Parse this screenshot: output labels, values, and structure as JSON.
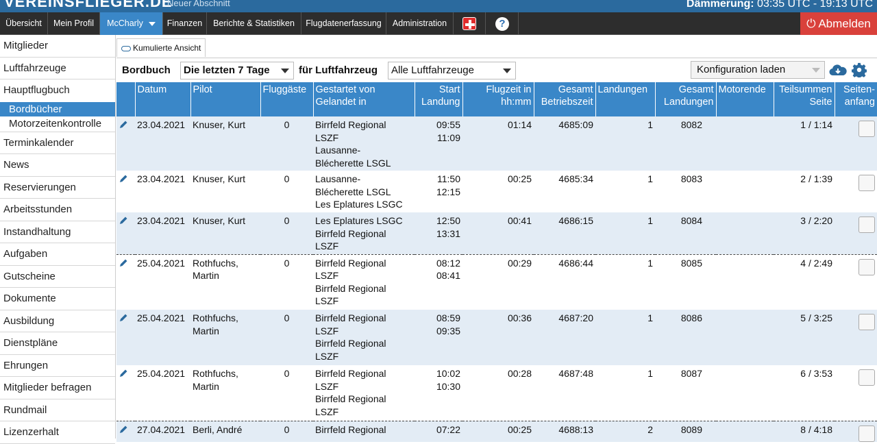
{
  "topbar": {
    "brand": "VEREINSFLIEGER.DE",
    "sub": "Neuer Abschnitt",
    "dusk_label": "Dämmerung:",
    "dusk_value": "03:35 UTC - 19:13 UTC"
  },
  "nav": {
    "items": [
      "Übersicht",
      "Mein Profil",
      "McCharly",
      "Finanzen",
      "Berichte & Statistiken",
      "Flugdatenerfassung",
      "Administration"
    ],
    "logout": "⏻ Abmelden"
  },
  "sidebar": {
    "items": [
      "Mitglieder",
      "Luftfahrzeuge",
      "Hauptflugbuch",
      "Bordbücher",
      "Motorzeitenkontrolle",
      "Terminkalender",
      "News",
      "Reservierungen",
      "Arbeitsstunden",
      "Instandhaltung",
      "Aufgaben",
      "Gutscheine",
      "Dokumente",
      "Ausbildung",
      "Dienstpläne",
      "Ehrungen",
      "Mitglieder befragen",
      "Rundmail",
      "Lizenzerhalt"
    ]
  },
  "tab": {
    "kumuliert": "Kumulierte Ansicht"
  },
  "filter": {
    "bordbuch_label": "Bordbuch",
    "period": "Die letzten 7 Tage",
    "aircraft_label": "für Luftfahrzeug",
    "aircraft": "Alle Luftfahrzeuge",
    "config": "Konfiguration laden"
  },
  "columns": {
    "datum": "Datum",
    "pilot": "Pilot",
    "gaeste": "Fluggäste",
    "von1": "Gestartet von",
    "von2": "Gelandet in",
    "start1": "Start",
    "start2": "Landung",
    "flugzeit1": "Flugzeit in",
    "flugzeit2": "hh:mm",
    "betrieb1": "Gesamt",
    "betrieb2": "Betriebszeit",
    "landungen": "Landungen",
    "gesland1": "Gesamt",
    "gesland2": "Landungen",
    "motorende": "Motorende",
    "teilsummen1": "Teilsummen",
    "teilsummen2": "Seite",
    "seiten1": "Seiten-",
    "seiten2": "anfang"
  },
  "rows": [
    {
      "datum": "23.04.2021",
      "pilot1": "Knuser, Kurt",
      "pilot2": "",
      "gaeste": "0",
      "von": [
        "Birrfeld Regional",
        "LSZF",
        "Lausanne-",
        "Blécherette LSGL"
      ],
      "start": "09:55",
      "landung": "11:09",
      "flugzeit": "01:14",
      "betrieb": "4685:09",
      "landungen": "1",
      "gesland": "8082",
      "teilsumme": "1 / 1:14"
    },
    {
      "datum": "23.04.2021",
      "pilot1": "Knuser, Kurt",
      "pilot2": "",
      "gaeste": "0",
      "von": [
        "Lausanne-",
        "Blécherette LSGL",
        "Les Eplatures LSGC"
      ],
      "start": "11:50",
      "landung": "12:15",
      "flugzeit": "00:25",
      "betrieb": "4685:34",
      "landungen": "1",
      "gesland": "8083",
      "teilsumme": "2 / 1:39"
    },
    {
      "datum": "23.04.2021",
      "pilot1": "Knuser, Kurt",
      "pilot2": "",
      "gaeste": "0",
      "von": [
        "Les Eplatures LSGC",
        "Birrfeld Regional",
        "LSZF"
      ],
      "start": "12:50",
      "landung": "13:31",
      "flugzeit": "00:41",
      "betrieb": "4686:15",
      "landungen": "1",
      "gesland": "8084",
      "teilsumme": "3 / 2:20"
    },
    {
      "datum": "25.04.2021",
      "pilot1": "Rothfuchs,",
      "pilot2": "Martin",
      "gaeste": "0",
      "von": [
        "Birrfeld Regional",
        "LSZF",
        "Birrfeld Regional",
        "LSZF"
      ],
      "start": "08:12",
      "landung": "08:41",
      "flugzeit": "00:29",
      "betrieb": "4686:44",
      "landungen": "1",
      "gesland": "8085",
      "teilsumme": "4 / 2:49"
    },
    {
      "datum": "25.04.2021",
      "pilot1": "Rothfuchs,",
      "pilot2": "Martin",
      "gaeste": "0",
      "von": [
        "Birrfeld Regional",
        "LSZF",
        "Birrfeld Regional",
        "LSZF"
      ],
      "start": "08:59",
      "landung": "09:35",
      "flugzeit": "00:36",
      "betrieb": "4687:20",
      "landungen": "1",
      "gesland": "8086",
      "teilsumme": "5 / 3:25"
    },
    {
      "datum": "25.04.2021",
      "pilot1": "Rothfuchs,",
      "pilot2": "Martin",
      "gaeste": "0",
      "von": [
        "Birrfeld Regional",
        "LSZF",
        "Birrfeld Regional",
        "LSZF"
      ],
      "start": "10:02",
      "landung": "10:30",
      "flugzeit": "00:28",
      "betrieb": "4687:48",
      "landungen": "1",
      "gesland": "8087",
      "teilsumme": "6 / 3:53"
    },
    {
      "datum": "27.04.2021",
      "pilot1": "Berli, André",
      "pilot2": "",
      "gaeste": "0",
      "von": [
        "Birrfeld Regional"
      ],
      "start": "07:22",
      "landung": "",
      "flugzeit": "00:25",
      "betrieb": "4688:13",
      "landungen": "2",
      "gesland": "8089",
      "teilsumme": "8 / 4:18"
    }
  ],
  "colors": {
    "accent": "#3a87c8",
    "nav": "#2d2d2d",
    "logout": "#d9413b",
    "row_alt": "#e3ecf5"
  }
}
